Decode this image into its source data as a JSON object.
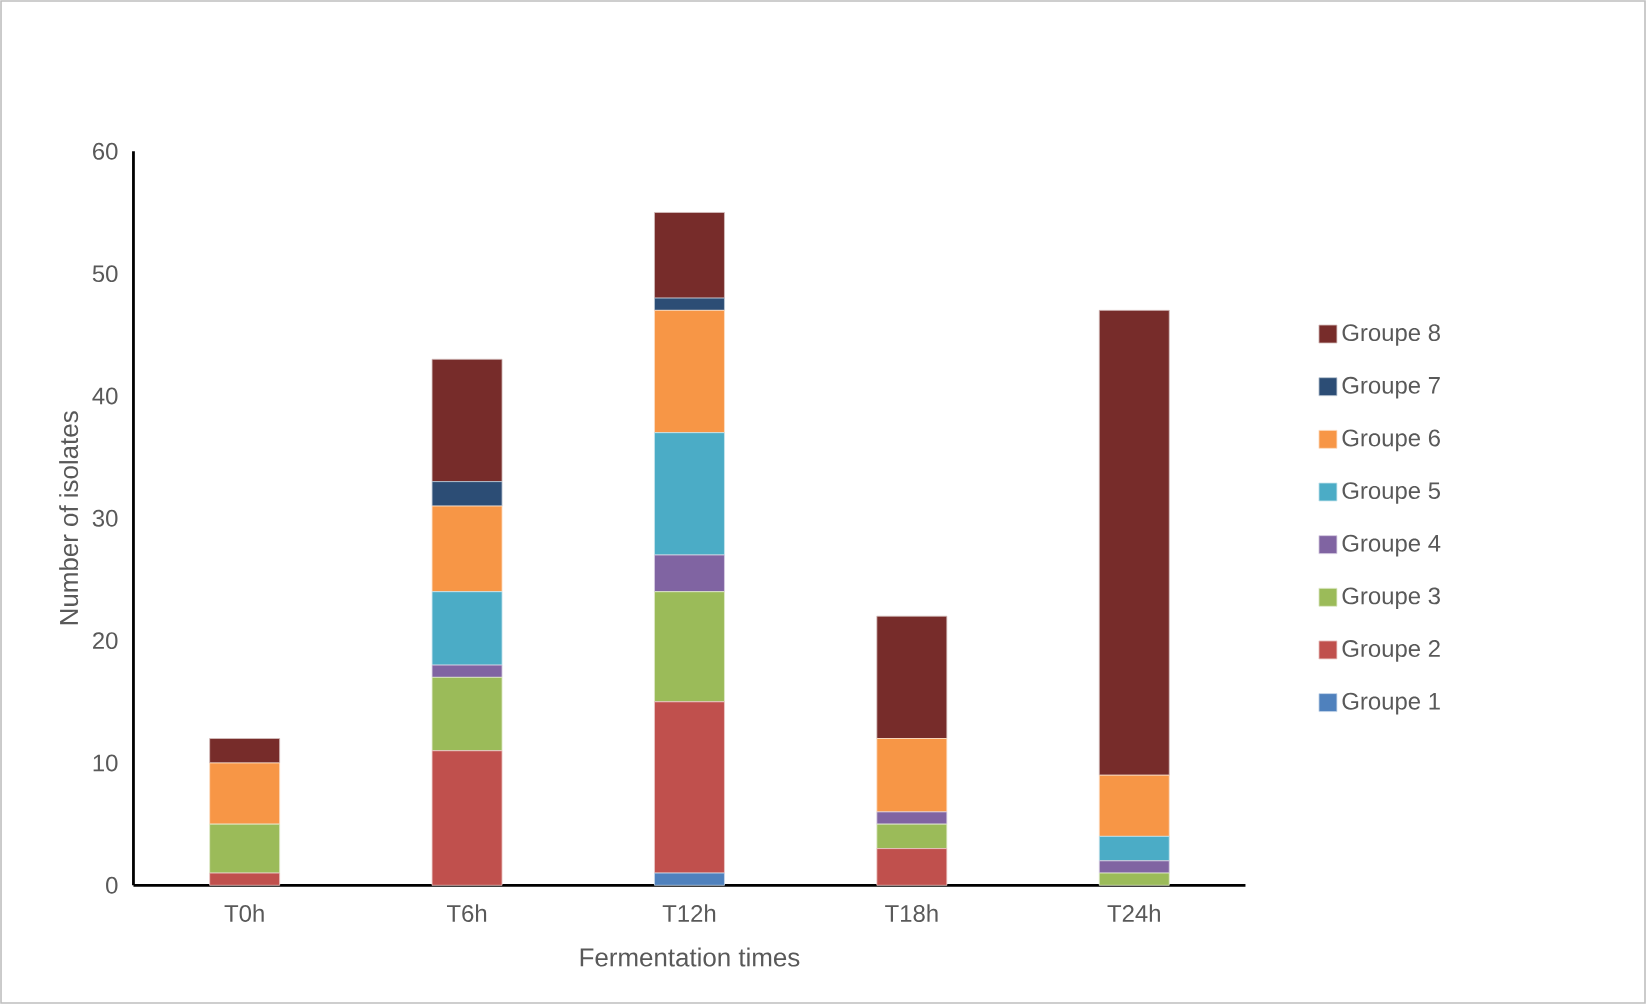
{
  "chart_data": {
    "type": "bar",
    "stacked": true,
    "xlabel": "Fermentation times",
    "ylabel": "Number of isolates",
    "categories": [
      "T0h",
      "T6h",
      "T12h",
      "T18h",
      "T24h"
    ],
    "ylim": [
      0,
      60
    ],
    "yticks": [
      0,
      10,
      20,
      30,
      40,
      50,
      60
    ],
    "legend": "right",
    "series": [
      {
        "name": "Groupe 1",
        "color": "#4f81bd",
        "values": [
          0,
          0,
          1,
          0,
          0
        ]
      },
      {
        "name": "Groupe 2",
        "color": "#c0504d",
        "values": [
          1,
          11,
          14,
          3,
          0
        ]
      },
      {
        "name": "Groupe 3",
        "color": "#9bbb59",
        "values": [
          4,
          6,
          9,
          2,
          1
        ]
      },
      {
        "name": "Groupe 4",
        "color": "#8064a2",
        "values": [
          0,
          1,
          3,
          1,
          1
        ]
      },
      {
        "name": "Groupe 5",
        "color": "#4bacc6",
        "values": [
          0,
          6,
          10,
          0,
          2
        ]
      },
      {
        "name": "Groupe 6",
        "color": "#f79646",
        "values": [
          5,
          7,
          10,
          6,
          5
        ]
      },
      {
        "name": "Groupe 7",
        "color": "#2c4d75",
        "values": [
          0,
          2,
          1,
          0,
          0
        ]
      },
      {
        "name": "Groupe 8",
        "color": "#772c2a",
        "values": [
          2,
          10,
          7,
          10,
          38
        ]
      }
    ]
  }
}
